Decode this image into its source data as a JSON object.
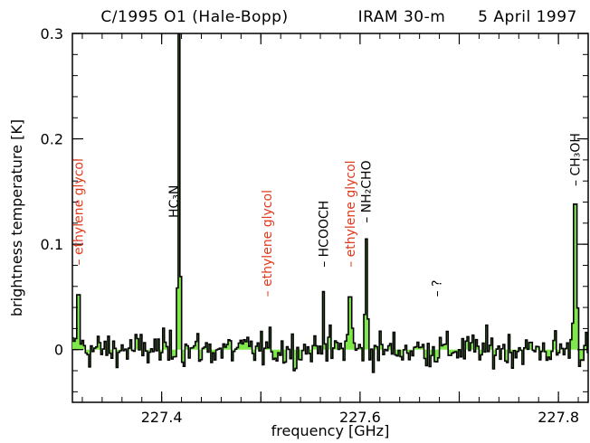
{
  "chart_data": {
    "type": "line",
    "title_parts": [
      "C/1995 O1 (Hale-Bopp)",
      "IRAM 30-m",
      "5 April 1997"
    ],
    "xlabel": "frequency [GHz]",
    "ylabel": "brightness temperature [K]",
    "xlim": [
      227.31,
      227.83
    ],
    "ylim": [
      -0.05,
      0.3
    ],
    "xticks": [
      227.4,
      227.5,
      227.6,
      227.7,
      227.8
    ],
    "xtick_labels": [
      "227.4",
      "",
      "227.6",
      "",
      "227.8"
    ],
    "yticks": [
      0,
      0.1,
      0.2,
      0.3
    ],
    "ytick_labels": [
      "0",
      "0.1",
      "0.2",
      "0.3"
    ],
    "grid": false,
    "fill_color": "#7fe84a",
    "line_color": "#000000",
    "highlight_color": "#e03a1e",
    "noise_rms": 0.012,
    "lines": [
      {
        "x": 227.316,
        "peak": 0.052
      },
      {
        "x": 227.418,
        "peak": 0.3
      },
      {
        "x": 227.563,
        "peak": 0.055
      },
      {
        "x": 227.59,
        "peak": 0.05
      },
      {
        "x": 227.606,
        "peak": 0.105
      },
      {
        "x": 227.817,
        "peak": 0.138
      }
    ],
    "annotations": [
      {
        "text": "– ethylene glycol",
        "x": 227.316,
        "y": 0.08,
        "color": "#e03a1e"
      },
      {
        "text": "HC₃N",
        "x": 227.412,
        "y": 0.125,
        "color": "#000000"
      },
      {
        "text": "– ethylene glycol",
        "x": 227.506,
        "y": 0.05,
        "color": "#e03a1e"
      },
      {
        "text": "– HCOOCH",
        "x": 227.563,
        "y": 0.078,
        "color": "#000000"
      },
      {
        "text": "– ethylene glycol",
        "x": 227.59,
        "y": 0.078,
        "color": "#e03a1e"
      },
      {
        "text": "– NH₂CHO",
        "x": 227.606,
        "y": 0.12,
        "color": "#000000"
      },
      {
        "text": "– ?",
        "x": 227.677,
        "y": 0.05,
        "color": "#000000"
      },
      {
        "text": "– CH₃OH",
        "x": 227.817,
        "y": 0.155,
        "color": "#000000"
      }
    ]
  }
}
